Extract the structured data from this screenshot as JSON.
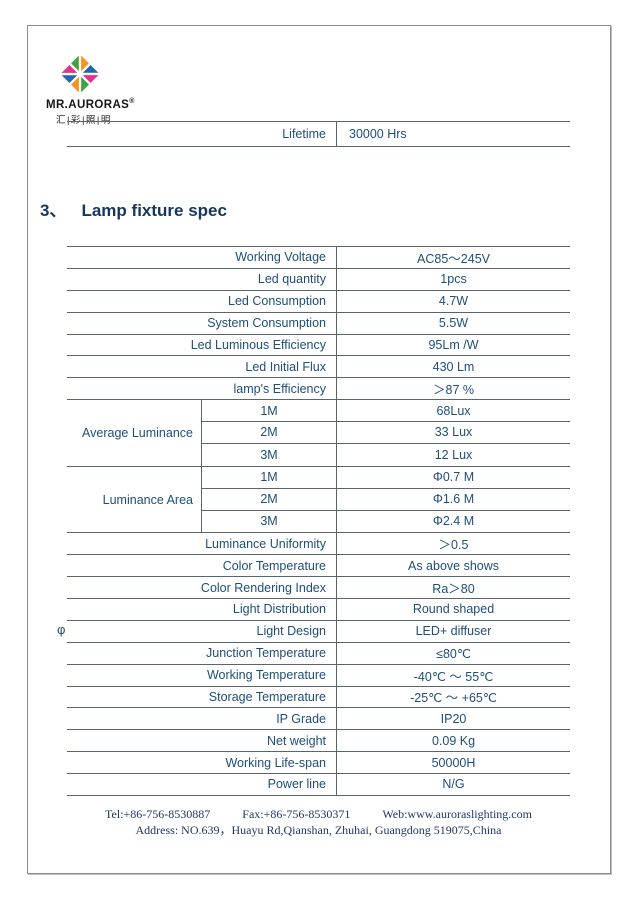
{
  "colors": {
    "text": "#1F4E79",
    "heading": "#17365D",
    "line": "#5A646E",
    "footer_text": "#1F3864"
  },
  "logo": {
    "name": "MR.AURORAS",
    "registered": "®",
    "chinese": "汇|彩|照|明",
    "icon": "pinwheel-icon",
    "icon_colors": {
      "green": "#3FA344",
      "orange": "#F7941E",
      "blue": "#2167AE",
      "magenta": "#E9318A"
    }
  },
  "lifetime_row": {
    "label": "Lifetime",
    "value": "30000 Hrs"
  },
  "heading": {
    "number": "3、",
    "text": "Lamp fixture spec"
  },
  "spec_table": {
    "rows": [
      {
        "label": "Working Voltage",
        "value": "AC85～245V"
      },
      {
        "label": "Led quantity",
        "value": "1pcs"
      },
      {
        "label": "Led Consumption",
        "value": "4.7W"
      },
      {
        "label": "System Consumption",
        "value": "5.5W"
      },
      {
        "label": "Led Luminous Efficiency",
        "value": "95Lm /W"
      },
      {
        "label": "Led Initial Flux",
        "value": "430 Lm"
      },
      {
        "label": "lamp's Efficiency",
        "value": "＞87 %"
      },
      {
        "group": "Average Luminance",
        "subrows": [
          [
            "1M",
            "68Lux"
          ],
          [
            "2M",
            "33 Lux"
          ],
          [
            "3M",
            "12 Lux"
          ]
        ]
      },
      {
        "group": "Luminance Area",
        "subrows": [
          [
            "1M",
            "Φ0.7 M"
          ],
          [
            "2M",
            "Φ1.6 M"
          ],
          [
            "3M",
            "Φ2.4 M"
          ]
        ]
      },
      {
        "label": "Luminance Uniformity",
        "value": "＞0.5"
      },
      {
        "label": "Color Temperature",
        "value": "As above shows"
      },
      {
        "label": "Color Rendering Index",
        "value": "Ra＞80"
      },
      {
        "label": "Light Distribution",
        "value": "Round shaped"
      },
      {
        "label": "Light Design",
        "value": "LED+ diffuser"
      },
      {
        "label": "Junction Temperature",
        "value": "≤80℃"
      },
      {
        "label": "Working Temperature",
        "value": "-40℃ ～ 55℃"
      },
      {
        "label": "Storage Temperature",
        "value": "-25℃ ～ +65℃"
      },
      {
        "label": "IP Grade",
        "value": "IP20"
      },
      {
        "label": "Net weight",
        "value": "0.09 Kg"
      },
      {
        "label": "Working Life-span",
        "value": "50000H"
      },
      {
        "label": "Power line",
        "value": "N/G"
      }
    ]
  },
  "phi_note": "φ",
  "footer": {
    "tel": "Tel:+86-756-8530887",
    "fax": "Fax:+86-756-8530371",
    "web": "Web:www.auroraslighting.com",
    "address": "Address: NO.639，Huayu Rd,Qianshan, Zhuhai, Guangdong 519075,China"
  }
}
